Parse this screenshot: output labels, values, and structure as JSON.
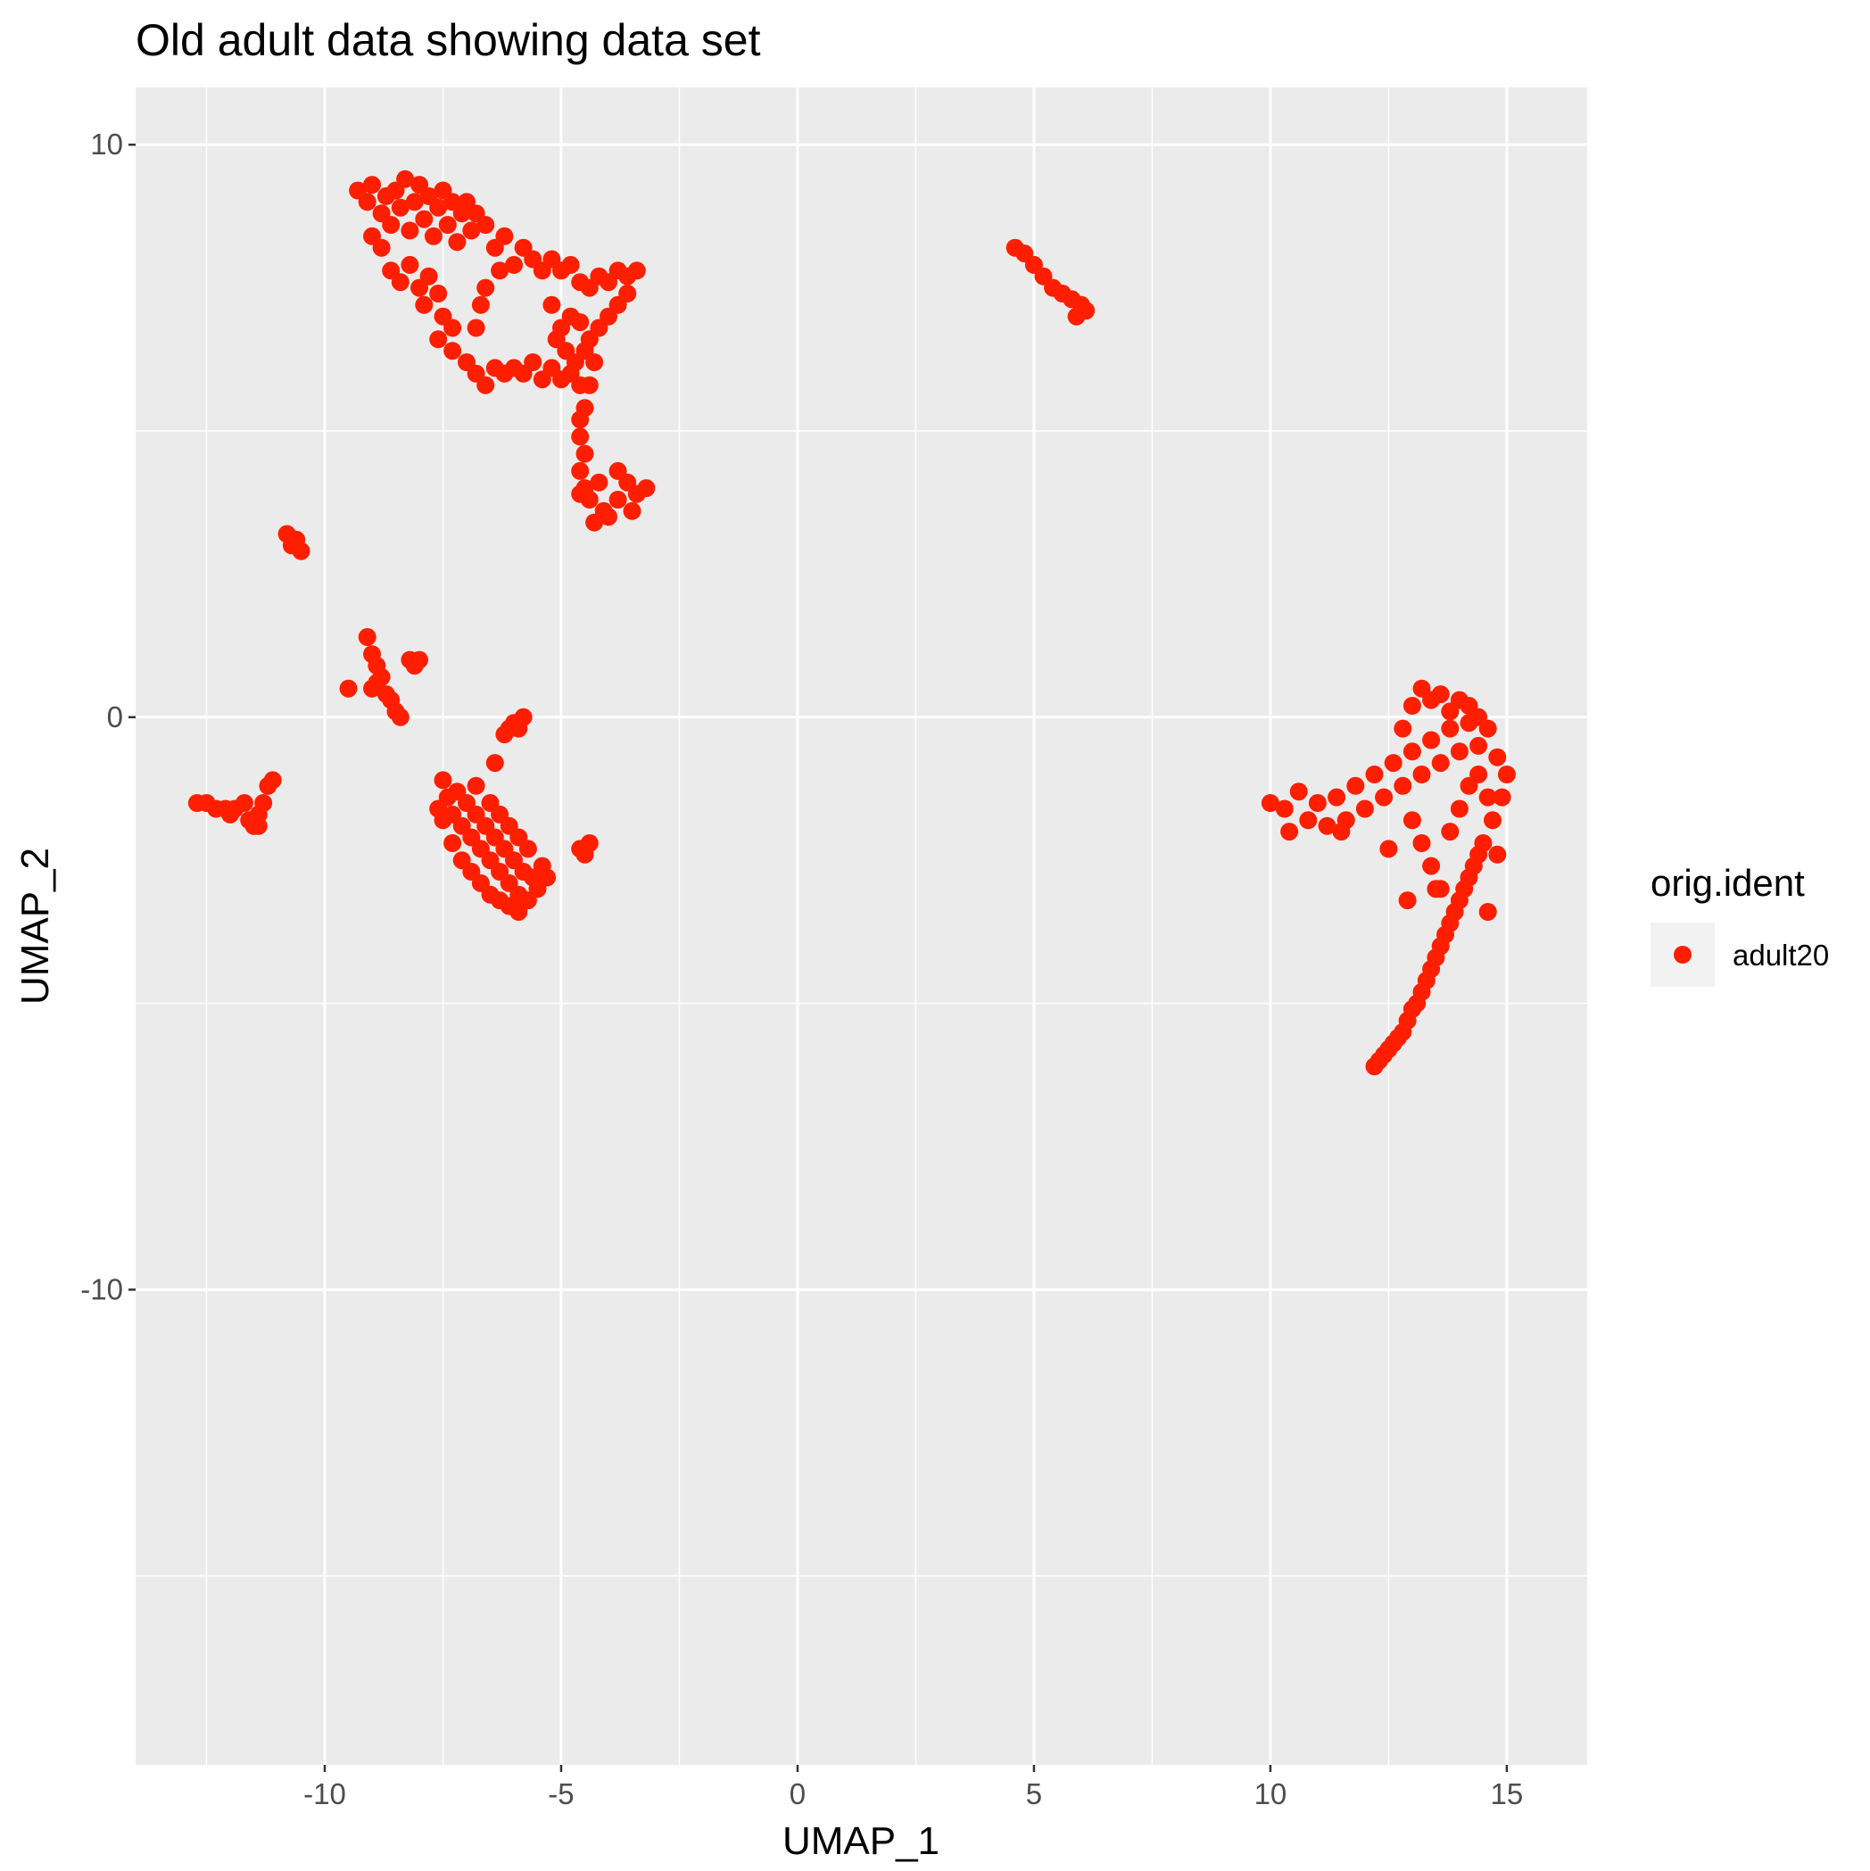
{
  "chart_data": {
    "type": "scatter",
    "title": "Old adult data showing data set",
    "xlabel": "UMAP_1",
    "ylabel": "UMAP_2",
    "xlim": [
      -14.0,
      16.7
    ],
    "ylim": [
      -18.3,
      11.0
    ],
    "xticks": [
      -10,
      -5,
      0,
      5,
      10,
      15
    ],
    "yticks": [
      -10,
      0,
      10
    ],
    "grid": true,
    "legend": {
      "title": "orig.ident",
      "position": "right",
      "entries": [
        {
          "label": "adult20",
          "color": "#ff1f00"
        }
      ]
    },
    "series": [
      {
        "name": "adult20",
        "color": "#ff1f00",
        "points": [
          [
            -9.3,
            9.2
          ],
          [
            -9.1,
            9.0
          ],
          [
            -9.0,
            9.3
          ],
          [
            -8.8,
            8.8
          ],
          [
            -8.7,
            9.1
          ],
          [
            -8.6,
            8.6
          ],
          [
            -8.5,
            9.2
          ],
          [
            -8.4,
            8.9
          ],
          [
            -8.3,
            9.4
          ],
          [
            -8.2,
            8.5
          ],
          [
            -8.1,
            9.0
          ],
          [
            -8.0,
            9.3
          ],
          [
            -7.9,
            8.7
          ],
          [
            -7.8,
            9.1
          ],
          [
            -7.7,
            8.4
          ],
          [
            -7.6,
            8.9
          ],
          [
            -7.5,
            9.2
          ],
          [
            -7.4,
            8.6
          ],
          [
            -7.3,
            9.0
          ],
          [
            -7.2,
            8.3
          ],
          [
            -7.1,
            8.8
          ],
          [
            -7.0,
            9.0
          ],
          [
            -6.9,
            8.5
          ],
          [
            -6.8,
            8.8
          ],
          [
            -6.6,
            8.6
          ],
          [
            -6.4,
            8.2
          ],
          [
            -6.2,
            8.4
          ],
          [
            -9.0,
            8.4
          ],
          [
            -8.8,
            8.2
          ],
          [
            -8.6,
            7.8
          ],
          [
            -8.4,
            7.6
          ],
          [
            -8.2,
            7.9
          ],
          [
            -8.0,
            7.5
          ],
          [
            -7.9,
            7.2
          ],
          [
            -7.8,
            7.7
          ],
          [
            -7.6,
            7.4
          ],
          [
            -7.5,
            7.0
          ],
          [
            -7.3,
            6.8
          ],
          [
            -7.6,
            6.6
          ],
          [
            -7.3,
            6.4
          ],
          [
            -7.0,
            6.2
          ],
          [
            -6.8,
            6.0
          ],
          [
            -6.6,
            5.8
          ],
          [
            -6.4,
            6.1
          ],
          [
            -6.2,
            6.0
          ],
          [
            -6.0,
            6.1
          ],
          [
            -5.8,
            6.0
          ],
          [
            -5.6,
            6.2
          ],
          [
            -5.4,
            5.9
          ],
          [
            -5.2,
            6.1
          ],
          [
            -5.0,
            5.9
          ],
          [
            -4.8,
            6.0
          ],
          [
            -4.6,
            5.8
          ],
          [
            -6.8,
            6.8
          ],
          [
            -6.7,
            7.2
          ],
          [
            -6.6,
            7.5
          ],
          [
            -6.3,
            7.8
          ],
          [
            -6.0,
            7.9
          ],
          [
            -5.8,
            8.2
          ],
          [
            -5.6,
            8.0
          ],
          [
            -5.4,
            7.8
          ],
          [
            -5.2,
            8.0
          ],
          [
            -5.0,
            7.8
          ],
          [
            -4.8,
            7.9
          ],
          [
            -4.6,
            7.6
          ],
          [
            -4.4,
            7.5
          ],
          [
            -4.2,
            7.7
          ],
          [
            -4.0,
            7.6
          ],
          [
            -3.8,
            7.8
          ],
          [
            -3.6,
            7.7
          ],
          [
            -3.4,
            7.8
          ],
          [
            -3.6,
            7.4
          ],
          [
            -3.8,
            7.2
          ],
          [
            -4.0,
            7.0
          ],
          [
            -4.2,
            6.8
          ],
          [
            -4.4,
            6.6
          ],
          [
            -4.6,
            6.9
          ],
          [
            -4.8,
            7.0
          ],
          [
            -5.0,
            6.8
          ],
          [
            -5.2,
            7.2
          ],
          [
            -5.1,
            6.6
          ],
          [
            -4.9,
            6.4
          ],
          [
            -4.7,
            6.2
          ],
          [
            -4.5,
            6.4
          ],
          [
            -4.3,
            6.2
          ],
          [
            -4.4,
            5.8
          ],
          [
            -4.5,
            5.4
          ],
          [
            -4.6,
            5.2
          ],
          [
            -4.6,
            4.9
          ],
          [
            -4.5,
            4.6
          ],
          [
            -4.6,
            4.3
          ],
          [
            -4.5,
            4.0
          ],
          [
            -4.4,
            3.8
          ],
          [
            -4.2,
            4.1
          ],
          [
            -4.1,
            3.6
          ],
          [
            -4.3,
            3.4
          ],
          [
            -4.0,
            3.5
          ],
          [
            -3.8,
            3.8
          ],
          [
            -3.6,
            4.1
          ],
          [
            -3.4,
            3.9
          ],
          [
            -3.2,
            4.0
          ],
          [
            -3.5,
            3.6
          ],
          [
            -3.8,
            4.3
          ],
          [
            -4.6,
            3.9
          ],
          [
            -10.8,
            3.2
          ],
          [
            -10.6,
            3.1
          ],
          [
            -10.7,
            3.0
          ],
          [
            -10.5,
            2.9
          ],
          [
            -9.1,
            1.4
          ],
          [
            -9.0,
            1.1
          ],
          [
            -8.9,
            0.9
          ],
          [
            -8.8,
            0.7
          ],
          [
            -9.0,
            0.5
          ],
          [
            -8.7,
            0.4
          ],
          [
            -8.6,
            0.3
          ],
          [
            -8.5,
            0.1
          ],
          [
            -9.5,
            0.5
          ],
          [
            -8.2,
            1.0
          ],
          [
            -8.1,
            0.9
          ],
          [
            -8.0,
            1.0
          ],
          [
            -8.4,
            0.0
          ],
          [
            -8.9,
            0.6
          ],
          [
            -6.2,
            -0.3
          ],
          [
            -6.0,
            -0.1
          ],
          [
            -5.8,
            0.0
          ],
          [
            -5.9,
            -0.2
          ],
          [
            -6.1,
            -0.2
          ],
          [
            -12.7,
            -1.5
          ],
          [
            -12.5,
            -1.5
          ],
          [
            -12.3,
            -1.6
          ],
          [
            -12.1,
            -1.6
          ],
          [
            -11.9,
            -1.6
          ],
          [
            -11.7,
            -1.5
          ],
          [
            -11.6,
            -1.8
          ],
          [
            -11.5,
            -1.9
          ],
          [
            -11.4,
            -1.7
          ],
          [
            -11.3,
            -1.5
          ],
          [
            -11.2,
            -1.2
          ],
          [
            -11.1,
            -1.1
          ],
          [
            -11.4,
            -1.9
          ],
          [
            -12.0,
            -1.7
          ],
          [
            -7.5,
            -1.1
          ],
          [
            -7.4,
            -1.4
          ],
          [
            -7.3,
            -1.7
          ],
          [
            -7.2,
            -1.3
          ],
          [
            -7.1,
            -1.9
          ],
          [
            -7.0,
            -1.5
          ],
          [
            -6.9,
            -2.1
          ],
          [
            -6.8,
            -1.7
          ],
          [
            -6.7,
            -2.3
          ],
          [
            -6.6,
            -1.9
          ],
          [
            -6.5,
            -2.5
          ],
          [
            -6.4,
            -2.1
          ],
          [
            -6.3,
            -2.7
          ],
          [
            -6.2,
            -2.3
          ],
          [
            -6.1,
            -2.9
          ],
          [
            -6.0,
            -2.5
          ],
          [
            -5.9,
            -3.1
          ],
          [
            -5.8,
            -2.7
          ],
          [
            -5.7,
            -3.2
          ],
          [
            -5.6,
            -2.8
          ],
          [
            -5.5,
            -3.0
          ],
          [
            -5.4,
            -2.6
          ],
          [
            -5.3,
            -2.8
          ],
          [
            -7.5,
            -1.8
          ],
          [
            -7.3,
            -2.2
          ],
          [
            -7.1,
            -2.5
          ],
          [
            -6.9,
            -2.7
          ],
          [
            -6.7,
            -2.9
          ],
          [
            -6.5,
            -3.1
          ],
          [
            -6.3,
            -3.2
          ],
          [
            -6.1,
            -3.3
          ],
          [
            -5.9,
            -3.4
          ],
          [
            -7.6,
            -1.6
          ],
          [
            -6.8,
            -1.2
          ],
          [
            -6.5,
            -1.5
          ],
          [
            -6.3,
            -1.7
          ],
          [
            -6.1,
            -1.9
          ],
          [
            -5.9,
            -2.1
          ],
          [
            -5.7,
            -2.3
          ],
          [
            -6.4,
            -0.8
          ],
          [
            -4.6,
            -2.3
          ],
          [
            -4.4,
            -2.2
          ],
          [
            -4.5,
            -2.4
          ],
          [
            4.6,
            8.2
          ],
          [
            4.8,
            8.1
          ],
          [
            5.0,
            7.9
          ],
          [
            5.2,
            7.7
          ],
          [
            5.4,
            7.5
          ],
          [
            5.6,
            7.4
          ],
          [
            5.8,
            7.3
          ],
          [
            6.0,
            7.2
          ],
          [
            6.1,
            7.1
          ],
          [
            5.9,
            7.0
          ],
          [
            10.0,
            -1.5
          ],
          [
            10.3,
            -1.6
          ],
          [
            10.4,
            -2.0
          ],
          [
            10.6,
            -1.3
          ],
          [
            10.8,
            -1.8
          ],
          [
            11.0,
            -1.5
          ],
          [
            11.2,
            -1.9
          ],
          [
            11.4,
            -1.4
          ],
          [
            11.6,
            -1.8
          ],
          [
            11.8,
            -1.2
          ],
          [
            12.0,
            -1.6
          ],
          [
            12.2,
            -1.0
          ],
          [
            12.4,
            -1.4
          ],
          [
            12.6,
            -0.8
          ],
          [
            12.8,
            -1.2
          ],
          [
            13.0,
            -0.6
          ],
          [
            13.2,
            -1.0
          ],
          [
            13.4,
            -0.4
          ],
          [
            13.6,
            -0.8
          ],
          [
            13.8,
            -0.2
          ],
          [
            14.0,
            -0.6
          ],
          [
            14.2,
            -0.1
          ],
          [
            14.4,
            -0.5
          ],
          [
            14.6,
            -0.2
          ],
          [
            14.8,
            -0.7
          ],
          [
            15.0,
            -1.0
          ],
          [
            14.9,
            -1.4
          ],
          [
            14.7,
            -1.8
          ],
          [
            14.5,
            -2.2
          ],
          [
            14.3,
            -2.6
          ],
          [
            14.1,
            -3.0
          ],
          [
            13.9,
            -3.4
          ],
          [
            13.7,
            -3.8
          ],
          [
            13.5,
            -4.2
          ],
          [
            13.3,
            -4.6
          ],
          [
            13.1,
            -5.0
          ],
          [
            12.9,
            -5.3
          ],
          [
            12.7,
            -5.6
          ],
          [
            12.5,
            -5.8
          ],
          [
            12.3,
            -6.0
          ],
          [
            12.2,
            -6.1
          ],
          [
            12.4,
            -5.9
          ],
          [
            12.6,
            -5.7
          ],
          [
            12.8,
            -5.5
          ],
          [
            13.0,
            -5.1
          ],
          [
            13.2,
            -4.8
          ],
          [
            13.4,
            -4.4
          ],
          [
            13.6,
            -4.0
          ],
          [
            13.8,
            -3.6
          ],
          [
            14.0,
            -3.2
          ],
          [
            14.2,
            -2.8
          ],
          [
            14.4,
            -2.4
          ],
          [
            14.6,
            -3.4
          ],
          [
            13.0,
            0.2
          ],
          [
            13.2,
            0.5
          ],
          [
            13.4,
            0.3
          ],
          [
            13.6,
            0.4
          ],
          [
            13.8,
            0.1
          ],
          [
            14.0,
            0.3
          ],
          [
            14.2,
            0.2
          ],
          [
            14.4,
            0.0
          ],
          [
            12.8,
            -0.2
          ],
          [
            13.0,
            -1.8
          ],
          [
            13.2,
            -2.2
          ],
          [
            13.4,
            -2.6
          ],
          [
            13.6,
            -3.0
          ],
          [
            13.8,
            -2.0
          ],
          [
            14.0,
            -1.6
          ],
          [
            14.2,
            -1.2
          ],
          [
            14.4,
            -1.0
          ],
          [
            14.6,
            -1.4
          ],
          [
            14.8,
            -2.4
          ],
          [
            12.9,
            -3.2
          ],
          [
            13.5,
            -3.0
          ],
          [
            11.5,
            -2.0
          ],
          [
            12.5,
            -2.3
          ]
        ]
      }
    ]
  }
}
